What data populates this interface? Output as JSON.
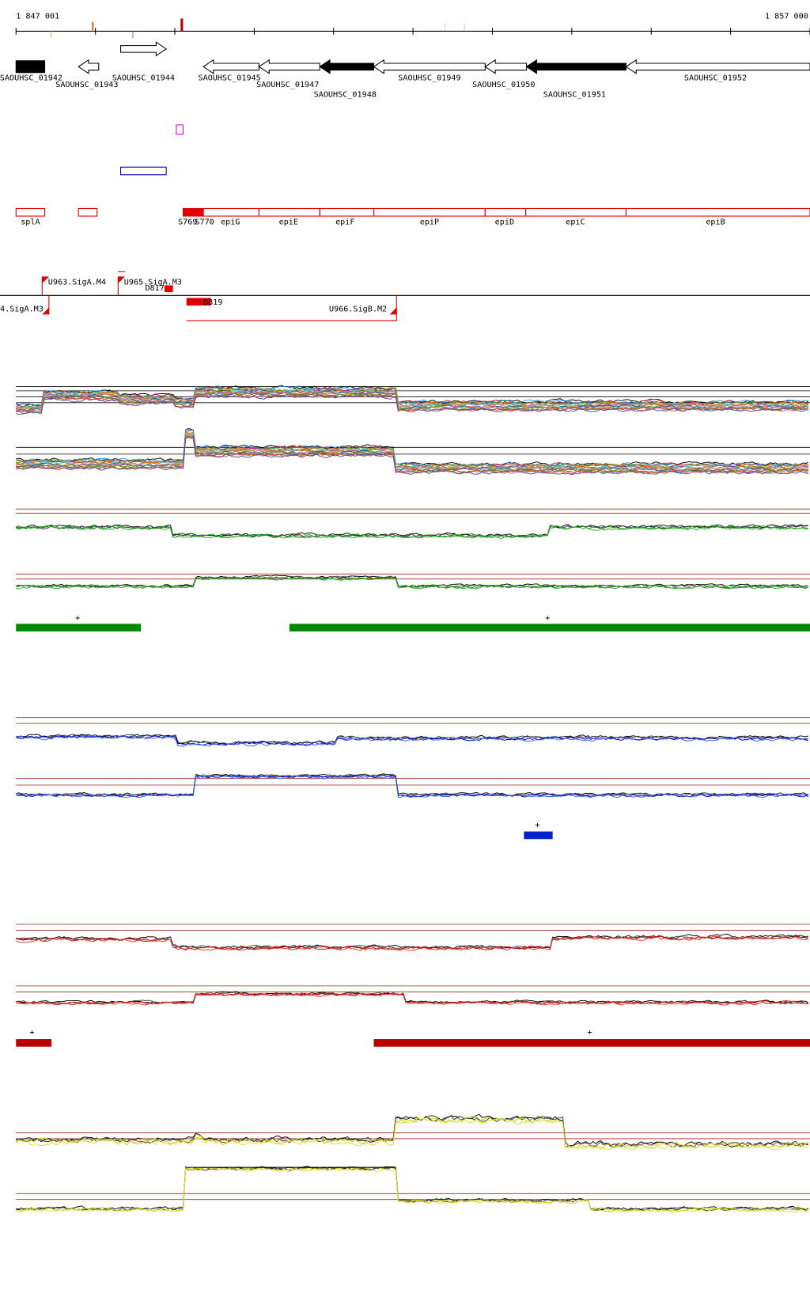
{
  "axis": {
    "start": "1 847 001",
    "end": "1 857 000"
  },
  "genes": [
    "SAOUHSC_01942",
    "SAOUHSC_01943",
    "SAOUHSC_01944",
    "SAOUHSC_01945",
    "SAOUHSC_01947",
    "SAOUHSC_01948",
    "SAOUHSC_01949",
    "SAOUHSC_01950",
    "SAOUHSC_01951",
    "SAOUHSC_01952"
  ],
  "features": [
    "splA",
    "S769",
    "S770",
    "epiG",
    "epiE",
    "epiF",
    "epiP",
    "epiD",
    "epiC",
    "epiB"
  ],
  "transcripts": [
    "U963.SigA.M4",
    "U965.SigA.M3",
    "D817",
    "4.SigA.M3",
    "D819",
    "U966.SigB.M2"
  ],
  "strand_marks": [
    "+",
    "+",
    "+",
    "+",
    "+"
  ]
}
